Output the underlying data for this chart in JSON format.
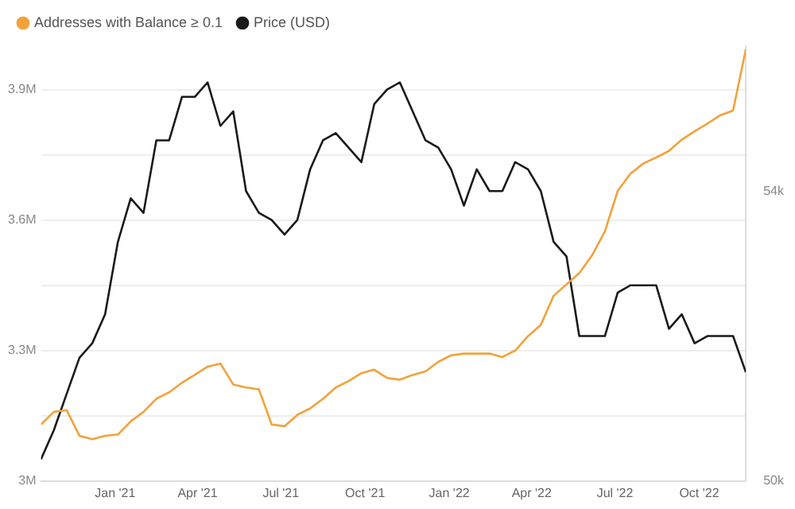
{
  "chart_data": {
    "type": "line",
    "legend": "top left",
    "grid": "y",
    "marker": "none",
    "line_style": "solid",
    "x": [
      "2020-10-12",
      "2020-10-26",
      "2020-11-09",
      "2020-11-23",
      "2020-12-07",
      "2020-12-21",
      "2021-01-04",
      "2021-01-18",
      "2021-02-01",
      "2021-02-15",
      "2021-03-01",
      "2021-03-15",
      "2021-03-29",
      "2021-04-12",
      "2021-04-26",
      "2021-05-10",
      "2021-05-24",
      "2021-06-07",
      "2021-06-21",
      "2021-07-05",
      "2021-07-19",
      "2021-08-02",
      "2021-08-16",
      "2021-08-30",
      "2021-09-13",
      "2021-09-27",
      "2021-10-11",
      "2021-10-25",
      "2021-11-08",
      "2021-11-22",
      "2021-12-06",
      "2021-12-20",
      "2022-01-03",
      "2022-01-17",
      "2022-01-31",
      "2022-02-14",
      "2022-02-28",
      "2022-03-14",
      "2022-03-28",
      "2022-04-11",
      "2022-04-25",
      "2022-05-09",
      "2022-05-23",
      "2022-06-06",
      "2022-06-20",
      "2022-07-04",
      "2022-07-18",
      "2022-08-01",
      "2022-08-15",
      "2022-08-29",
      "2022-09-12",
      "2022-09-26",
      "2022-10-10",
      "2022-10-24",
      "2022-11-07",
      "2022-11-21"
    ],
    "xlim": [
      "2020-10-12",
      "2022-11-21"
    ],
    "xticks": [
      {
        "value": "2021-01-01",
        "label": "Jan '21"
      },
      {
        "value": "2021-04-01",
        "label": "Apr '21"
      },
      {
        "value": "2021-07-01",
        "label": "Jul '21"
      },
      {
        "value": "2021-10-01",
        "label": "Oct '21"
      },
      {
        "value": "2022-01-01",
        "label": "Jan '22"
      },
      {
        "value": "2022-04-01",
        "label": "Apr '22"
      },
      {
        "value": "2022-07-01",
        "label": "Jul '22"
      },
      {
        "value": "2022-10-01",
        "label": "Oct '22"
      }
    ],
    "ylim": [
      3000000,
      4000000
    ],
    "yticks": [
      {
        "value": 3000000,
        "label": "3M"
      },
      {
        "value": 3150000,
        "label": null
      },
      {
        "value": 3300000,
        "label": "3.3M"
      },
      {
        "value": 3450000,
        "label": null
      },
      {
        "value": 3600000,
        "label": "3.6M"
      },
      {
        "value": 3750000,
        "label": null
      },
      {
        "value": 3900000,
        "label": "3.9M"
      }
    ],
    "y2lim": [
      50000,
      56000
    ],
    "y2ticks": [
      {
        "value": 50000,
        "label": "50k"
      },
      {
        "value": 54000,
        "label": "54k"
      }
    ],
    "series": [
      {
        "name": "Addresses with Balance ≥ 0.1",
        "color": "#f2a23a",
        "axis": "y",
        "values": [
          3130000,
          3159000,
          3163000,
          3104000,
          3096000,
          3104000,
          3107000,
          3137000,
          3159000,
          3189000,
          3204000,
          3226000,
          3244000,
          3263000,
          3270000,
          3222000,
          3215000,
          3211000,
          3130000,
          3126000,
          3152000,
          3167000,
          3189000,
          3215000,
          3230000,
          3248000,
          3256000,
          3237000,
          3233000,
          3244000,
          3252000,
          3274000,
          3289000,
          3293000,
          3293000,
          3293000,
          3285000,
          3300000,
          3333000,
          3359000,
          3426000,
          3452000,
          3478000,
          3519000,
          3574000,
          3667000,
          3707000,
          3730000,
          3744000,
          3759000,
          3785000,
          3804000,
          3822000,
          3841000,
          3852000,
          3993000
        ]
      },
      {
        "name": "Price (USD)",
        "color": "#1a1a1a",
        "axis": "y2",
        "values": [
          50300,
          50700,
          51200,
          51700,
          51900,
          52300,
          53300,
          53900,
          53700,
          54700,
          54700,
          55300,
          55300,
          55500,
          54900,
          55100,
          54000,
          53700,
          53600,
          53400,
          53600,
          54300,
          54700,
          54800,
          54600,
          54400,
          55200,
          55400,
          55500,
          55100,
          54700,
          54600,
          54300,
          53800,
          54300,
          54000,
          54000,
          54400,
          54300,
          54000,
          53300,
          53100,
          52000,
          52000,
          52000,
          52600,
          52700,
          52700,
          52700,
          52100,
          52300,
          51900,
          52000,
          52000,
          52000,
          51500
        ]
      }
    ]
  }
}
